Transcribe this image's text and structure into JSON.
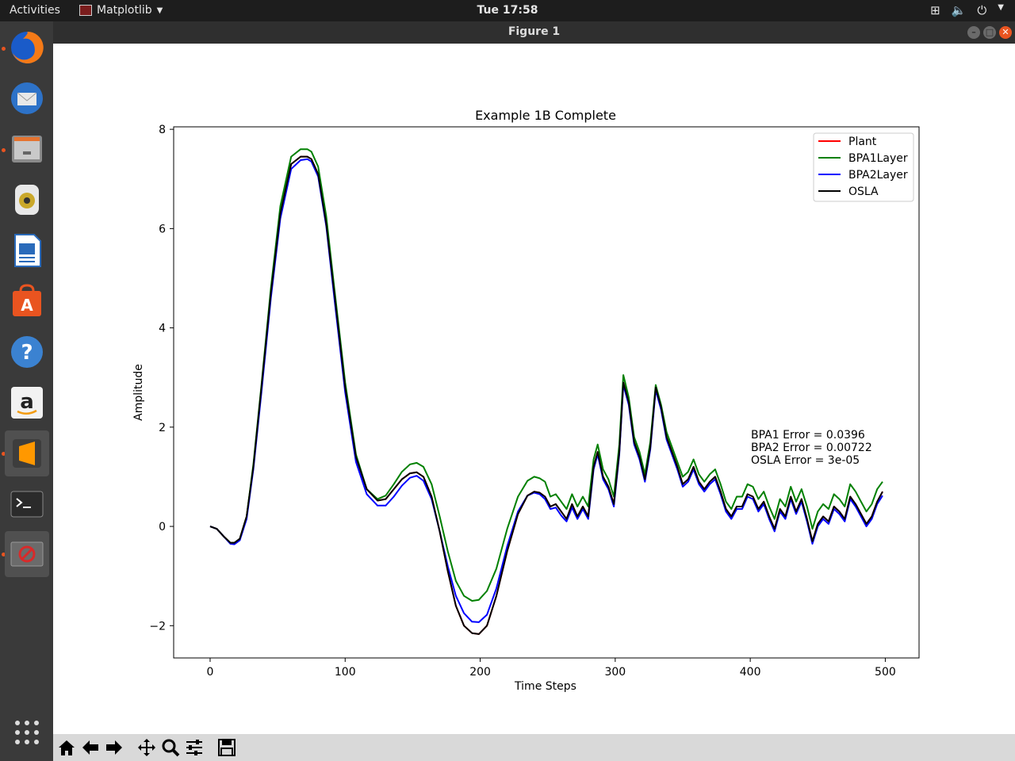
{
  "topbar": {
    "activities": "Activities",
    "app_name": "Matplotlib",
    "clock": "Tue 17:58"
  },
  "window": {
    "title": "Figure 1"
  },
  "dock": {
    "items": [
      {
        "name": "firefox",
        "icon": "firefox-icon"
      },
      {
        "name": "thunderbird",
        "icon": "mail-icon"
      },
      {
        "name": "files",
        "icon": "files-icon"
      },
      {
        "name": "rhythmbox",
        "icon": "music-icon"
      },
      {
        "name": "writer",
        "icon": "document-icon"
      },
      {
        "name": "software",
        "icon": "store-icon"
      },
      {
        "name": "help",
        "icon": "help-icon"
      },
      {
        "name": "amazon",
        "icon": "amazon-icon"
      },
      {
        "name": "sublime",
        "icon": "sublime-icon"
      },
      {
        "name": "terminal",
        "icon": "terminal-icon"
      },
      {
        "name": "figure",
        "icon": "figure-window-icon"
      }
    ]
  },
  "toolbar": {
    "buttons": [
      "home-icon",
      "back-arrow-icon",
      "forward-arrow-icon",
      "pan-icon",
      "zoom-icon",
      "configure-icon",
      "save-icon"
    ]
  },
  "chart_data": {
    "type": "line",
    "title": "Example 1B Complete",
    "xlabel": "Time Steps",
    "ylabel": "Amplitude",
    "xlim": [
      -27,
      525
    ],
    "ylim": [
      -2.65,
      8.05
    ],
    "xticks": [
      0,
      100,
      200,
      300,
      400,
      500
    ],
    "yticks": [
      -2,
      0,
      2,
      4,
      6,
      8
    ],
    "xtick_labels": [
      "0",
      "100",
      "200",
      "300",
      "400",
      "500"
    ],
    "ytick_labels": [
      "−2",
      "0",
      "2",
      "4",
      "6",
      "8"
    ],
    "legend_position": "top-right",
    "grid": false,
    "annotation": [
      "BPA1 Error = 0.0396",
      "BPA2 Error = 0.00722",
      "OSLA Error = 3e-05"
    ],
    "x": [
      0,
      5,
      10,
      15,
      18,
      22,
      27,
      32,
      38,
      45,
      52,
      60,
      67,
      72,
      75,
      80,
      86,
      92,
      100,
      108,
      116,
      124,
      130,
      136,
      142,
      148,
      153,
      158,
      164,
      170,
      176,
      182,
      188,
      194,
      199,
      205,
      212,
      220,
      228,
      235,
      240,
      244,
      248,
      252,
      256,
      260,
      264,
      268,
      272,
      276,
      280,
      284,
      287,
      291,
      295,
      299,
      303,
      306,
      310,
      314,
      318,
      322,
      326,
      330,
      334,
      338,
      342,
      346,
      350,
      354,
      358,
      362,
      366,
      370,
      374,
      378,
      382,
      386,
      390,
      394,
      398,
      402,
      406,
      410,
      414,
      418,
      422,
      426,
      430,
      434,
      438,
      442,
      446,
      450,
      454,
      458,
      462,
      466,
      470,
      474,
      478,
      482,
      486,
      490,
      494,
      498
    ],
    "series": [
      {
        "name": "Plant",
        "color": "#ff0000",
        "values": [
          0,
          -0.05,
          -0.2,
          -0.33,
          -0.33,
          -0.25,
          0.2,
          1.2,
          2.8,
          4.7,
          6.3,
          7.3,
          7.45,
          7.45,
          7.4,
          7.1,
          6.1,
          4.7,
          2.8,
          1.4,
          0.75,
          0.52,
          0.55,
          0.75,
          0.95,
          1.07,
          1.09,
          1.0,
          0.6,
          -0.1,
          -0.9,
          -1.6,
          -2.0,
          -2.15,
          -2.17,
          -2.0,
          -1.4,
          -0.5,
          0.25,
          0.62,
          0.7,
          0.68,
          0.6,
          0.4,
          0.45,
          0.3,
          0.15,
          0.45,
          0.2,
          0.4,
          0.2,
          1.2,
          1.5,
          1.0,
          0.8,
          0.45,
          1.5,
          2.9,
          2.5,
          1.7,
          1.4,
          0.95,
          1.6,
          2.8,
          2.4,
          1.8,
          1.5,
          1.2,
          0.85,
          0.95,
          1.2,
          0.9,
          0.75,
          0.9,
          1.0,
          0.7,
          0.35,
          0.2,
          0.4,
          0.4,
          0.65,
          0.6,
          0.35,
          0.5,
          0.2,
          -0.05,
          0.35,
          0.2,
          0.6,
          0.3,
          0.55,
          0.15,
          -0.3,
          0.05,
          0.2,
          0.1,
          0.4,
          0.3,
          0.15,
          0.6,
          0.45,
          0.25,
          0.05,
          0.2,
          0.5,
          0.7
        ]
      },
      {
        "name": "BPA1Layer",
        "color": "#008000",
        "values": [
          0,
          -0.05,
          -0.2,
          -0.33,
          -0.33,
          -0.25,
          0.2,
          1.25,
          2.85,
          4.8,
          6.45,
          7.45,
          7.6,
          7.6,
          7.55,
          7.25,
          6.25,
          4.8,
          2.9,
          1.45,
          0.75,
          0.55,
          0.62,
          0.85,
          1.1,
          1.25,
          1.28,
          1.2,
          0.85,
          0.2,
          -0.5,
          -1.1,
          -1.4,
          -1.5,
          -1.48,
          -1.3,
          -0.85,
          -0.05,
          0.6,
          0.92,
          1.0,
          0.97,
          0.9,
          0.6,
          0.65,
          0.5,
          0.35,
          0.65,
          0.4,
          0.6,
          0.4,
          1.35,
          1.65,
          1.15,
          0.95,
          0.6,
          1.65,
          3.05,
          2.6,
          1.8,
          1.5,
          1.05,
          1.7,
          2.85,
          2.45,
          1.9,
          1.6,
          1.3,
          1.0,
          1.1,
          1.35,
          1.05,
          0.9,
          1.05,
          1.15,
          0.85,
          0.5,
          0.35,
          0.6,
          0.6,
          0.85,
          0.8,
          0.55,
          0.7,
          0.4,
          0.15,
          0.55,
          0.4,
          0.8,
          0.5,
          0.75,
          0.4,
          -0.05,
          0.3,
          0.45,
          0.35,
          0.65,
          0.55,
          0.4,
          0.85,
          0.7,
          0.5,
          0.3,
          0.45,
          0.75,
          0.9
        ]
      },
      {
        "name": "BPA2Layer",
        "color": "#0000ff",
        "values": [
          0,
          -0.05,
          -0.2,
          -0.35,
          -0.36,
          -0.28,
          0.15,
          1.15,
          2.7,
          4.6,
          6.2,
          7.2,
          7.38,
          7.4,
          7.35,
          7.05,
          6.05,
          4.6,
          2.7,
          1.3,
          0.65,
          0.42,
          0.42,
          0.6,
          0.82,
          0.98,
          1.02,
          0.92,
          0.55,
          -0.1,
          -0.8,
          -1.4,
          -1.75,
          -1.92,
          -1.93,
          -1.78,
          -1.25,
          -0.4,
          0.3,
          0.62,
          0.68,
          0.65,
          0.55,
          0.35,
          0.38,
          0.22,
          0.1,
          0.38,
          0.15,
          0.35,
          0.15,
          1.15,
          1.45,
          0.95,
          0.75,
          0.4,
          1.45,
          2.85,
          2.45,
          1.65,
          1.35,
          0.9,
          1.55,
          2.75,
          2.35,
          1.75,
          1.45,
          1.15,
          0.8,
          0.9,
          1.15,
          0.85,
          0.7,
          0.85,
          0.95,
          0.65,
          0.3,
          0.15,
          0.35,
          0.35,
          0.6,
          0.55,
          0.3,
          0.45,
          0.15,
          -0.1,
          0.3,
          0.15,
          0.55,
          0.25,
          0.5,
          0.1,
          -0.35,
          0.0,
          0.15,
          0.05,
          0.35,
          0.25,
          0.1,
          0.55,
          0.4,
          0.2,
          0.0,
          0.15,
          0.45,
          0.62
        ]
      },
      {
        "name": "OSLA",
        "color": "#000000",
        "values": [
          0,
          -0.05,
          -0.2,
          -0.33,
          -0.33,
          -0.25,
          0.2,
          1.2,
          2.8,
          4.7,
          6.3,
          7.3,
          7.45,
          7.45,
          7.4,
          7.1,
          6.1,
          4.7,
          2.8,
          1.4,
          0.75,
          0.52,
          0.55,
          0.75,
          0.95,
          1.07,
          1.09,
          1.0,
          0.6,
          -0.1,
          -0.9,
          -1.6,
          -2.0,
          -2.15,
          -2.17,
          -2.0,
          -1.4,
          -0.5,
          0.25,
          0.62,
          0.7,
          0.68,
          0.6,
          0.4,
          0.45,
          0.3,
          0.15,
          0.45,
          0.2,
          0.4,
          0.2,
          1.2,
          1.5,
          1.0,
          0.8,
          0.45,
          1.5,
          2.9,
          2.5,
          1.7,
          1.4,
          0.95,
          1.6,
          2.8,
          2.4,
          1.8,
          1.5,
          1.2,
          0.85,
          0.95,
          1.2,
          0.9,
          0.75,
          0.9,
          1.0,
          0.7,
          0.35,
          0.2,
          0.4,
          0.4,
          0.65,
          0.6,
          0.35,
          0.5,
          0.2,
          -0.05,
          0.35,
          0.2,
          0.6,
          0.3,
          0.55,
          0.15,
          -0.3,
          0.05,
          0.2,
          0.1,
          0.4,
          0.3,
          0.15,
          0.6,
          0.45,
          0.25,
          0.05,
          0.2,
          0.5,
          0.7
        ]
      }
    ]
  }
}
